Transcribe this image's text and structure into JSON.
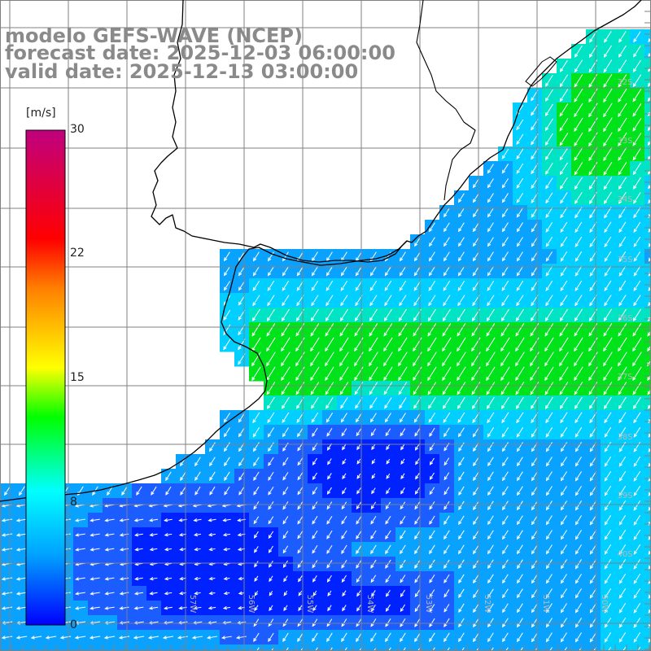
{
  "titles": {
    "model": "modelo GEFS-WAVE (NCEP)",
    "forecast": "forecast date: 2025-12-03 06:00:00",
    "valid": "valid date: 2025-12-13 03:00:00"
  },
  "colorbar": {
    "unit": "[m/s]",
    "ticks": [
      "30",
      "22",
      "15",
      "8",
      "0"
    ],
    "tick_values": [
      30,
      22,
      15,
      8,
      0
    ],
    "colors": [
      "#0000ff",
      "#00a0ff",
      "#00ffff",
      "#00ff00",
      "#ffff00",
      "#ff8000",
      "#ff0000",
      "#c0007f"
    ]
  },
  "lat_labels": [
    "32S",
    "33S",
    "34S",
    "35S",
    "36S",
    "37S",
    "38S",
    "39S",
    "40S"
  ],
  "lon_labels": [
    "57W",
    "56W",
    "55W",
    "54W",
    "53W",
    "52W",
    "51W",
    "50W"
  ],
  "palette": {
    "green": "#00e21a",
    "teal": "#00e3c4",
    "cyan": "#00cfff",
    "azure": "#0aa2ff",
    "blue": "#1c5dff",
    "deep": "#0022ff",
    "grid": "#808080",
    "coast": "#000000",
    "arrow": "#ffffff"
  }
}
